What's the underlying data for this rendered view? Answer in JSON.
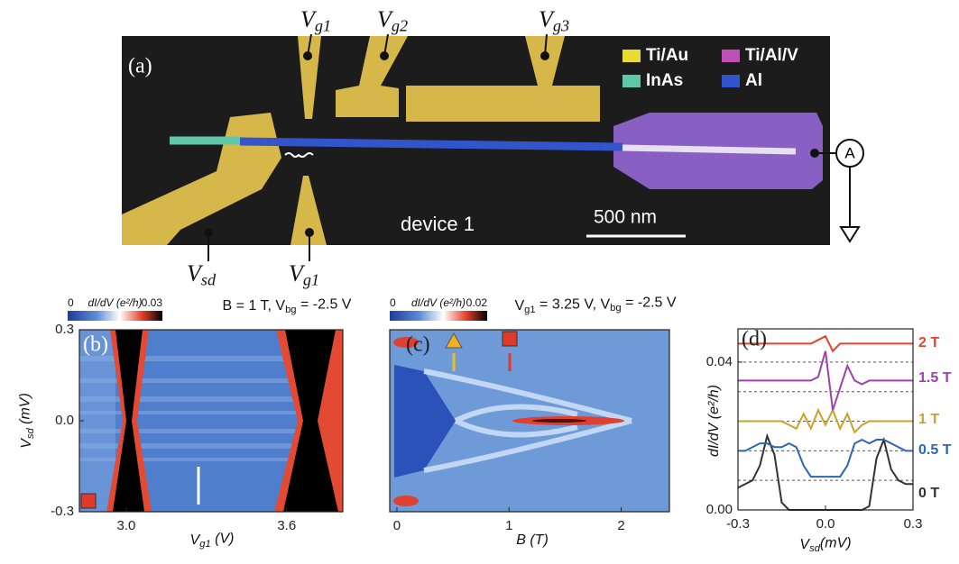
{
  "figure": {
    "label": "(a)",
    "gates": [
      [
        "V",
        "g1"
      ],
      [
        "V",
        "g2"
      ],
      [
        "V",
        "g3"
      ],
      [
        "V",
        "sd"
      ],
      [
        "V",
        "g1"
      ]
    ],
    "legend": [
      "Ti/Au",
      "Ti/Al/V",
      "InAs",
      "Al"
    ],
    "device": "device 1",
    "scale": "500 nm",
    "ammeter": "A"
  },
  "chart_data": [
    {
      "type": "heatmap",
      "panel_label": "(b)",
      "title": [
        "B = 1 T, V",
        "bg",
        " = -2.5 V"
      ],
      "colorbar": {
        "label": "dI/dV (e²/h)",
        "ticks": [
          0,
          0.03
        ]
      },
      "x_label": [
        "V",
        "g1",
        " (V)"
      ],
      "y_label": [
        "V",
        "sd",
        " (mV)"
      ],
      "xlim": [
        2.825,
        3.81
      ],
      "ylim": [
        -0.3,
        0.3
      ],
      "xticks": [
        {
          "value": 3,
          "label": "3.0"
        },
        3.6
      ],
      "yticks": [
        0.3,
        {
          "value": 0,
          "label": "0.0"
        },
        -0.3
      ]
    },
    {
      "type": "heatmap",
      "panel_label": "(c)",
      "title": [
        "V",
        "g1",
        " = 3.25 V, V",
        "bg",
        " = -2.5 V"
      ],
      "colorbar": {
        "label": "dI/dV (e²/h)",
        "ticks": [
          0,
          0.02
        ]
      },
      "x_label": "B (T)",
      "xlim": [
        -0.064,
        2.43
      ],
      "xticks": [
        0,
        1,
        2
      ]
    },
    {
      "type": "line",
      "panel_label": "(d)",
      "x_label": [
        "V",
        "sd",
        "(mV)"
      ],
      "y_label": "dI/dV (e²/h)",
      "xlim": [
        -0.3,
        0.3
      ],
      "ylim": [
        0,
        0.049
      ],
      "xticks": [
        -0.3,
        {
          "value": 0,
          "label": "0.0"
        },
        0.3
      ],
      "yticks": [
        {
          "value": 0,
          "label": "0.00"
        },
        {
          "value": 0.04,
          "label": "0.04"
        }
      ],
      "baselines": [
        0.008,
        0.016,
        0.024,
        0.032,
        0.04
      ],
      "x": [
        -0.3,
        -0.275,
        -0.25,
        -0.225,
        -0.2,
        -0.175,
        -0.15,
        -0.125,
        -0.1,
        -0.075,
        -0.05,
        -0.025,
        0,
        0.025,
        0.05,
        0.075,
        0.1,
        0.125,
        0.15,
        0.175,
        0.2,
        0.225,
        0.25,
        0.275,
        0.3
      ],
      "series": [
        {
          "name": "0 T",
          "color": "#333333",
          "values": [
            0.006,
            0.007,
            0.008,
            0.012,
            0.02,
            0.015,
            0.002,
            0,
            0,
            0,
            0,
            0,
            0,
            0,
            0,
            0,
            0,
            0,
            0.001,
            0.014,
            0.019,
            0.011,
            0.008,
            0.007,
            0.007
          ]
        },
        {
          "name": "0.5 T",
          "color": "#2e64b8",
          "values": [
            0.016,
            0.016,
            0.017,
            0.018,
            0.018,
            0.017,
            0.017,
            0.018,
            0.017,
            0.012,
            0.009,
            0.009,
            0.009,
            0.009,
            0.009,
            0.012,
            0.018,
            0.019,
            0.018,
            0.019,
            0.019,
            0.018,
            0.017,
            0.016,
            0.016
          ]
        },
        {
          "name": "1 T",
          "color": "#c9a227",
          "values": [
            0.024,
            0.024,
            0.024,
            0.024,
            0.024,
            0.024,
            0.024,
            0.023,
            0.022,
            0.026,
            0.022,
            0.027,
            0.023,
            0.027,
            0.022,
            0.026,
            0.021,
            0.023,
            0.024,
            0.024,
            0.024,
            0.024,
            0.024,
            0.024,
            0.024
          ]
        },
        {
          "name": "1.5 T",
          "color": "#a040b0",
          "values": [
            0.035,
            0.035,
            0.035,
            0.035,
            0.035,
            0.035,
            0.035,
            0.035,
            0.035,
            0.035,
            0.035,
            0.036,
            0.043,
            0.027,
            0.033,
            0.039,
            0.035,
            0.034,
            0.035,
            0.035,
            0.035,
            0.035,
            0.035,
            0.035,
            0.035
          ]
        },
        {
          "name": "2 T",
          "color": "#e8412c",
          "values": [
            0.045,
            0.045,
            0.045,
            0.045,
            0.045,
            0.045,
            0.045,
            0.045,
            0.045,
            0.045,
            0.045,
            0.046,
            0.047,
            0.043,
            0.045,
            0.045,
            0.045,
            0.045,
            0.045,
            0.045,
            0.045,
            0.045,
            0.045,
            0.045,
            0.045
          ]
        }
      ]
    }
  ]
}
